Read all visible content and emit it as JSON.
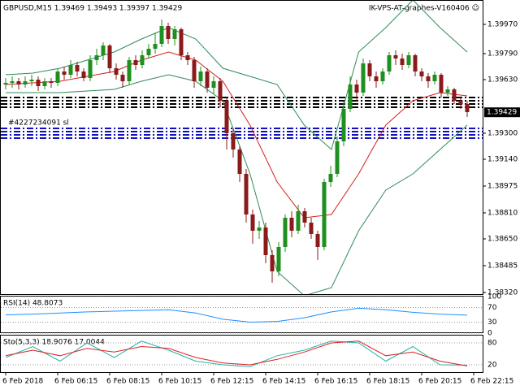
{
  "chart_data": [
    {
      "type": "candlestick",
      "title": "GBPUSD,M15  1.39469 1.39493 1.39397 1.39429",
      "subtitle": "IK-VPS-AT-graphes-V160406 ☺",
      "order_label": "#4227234091 sl",
      "categories": [
        "6 Feb 2018",
        null,
        null,
        null,
        null,
        null,
        null,
        null,
        "6 Feb 06:15",
        null,
        null,
        null,
        null,
        null,
        null,
        null,
        "6 Feb 08:15",
        null,
        null,
        null,
        null,
        null,
        null,
        null,
        "6 Feb 10:15",
        null,
        null,
        null,
        null,
        null,
        null,
        null,
        "6 Feb 12:15",
        null,
        null,
        null,
        null,
        null,
        null,
        null,
        "6 Feb 14:15",
        null,
        null,
        null,
        null,
        null,
        null,
        null,
        "6 Feb 16:15",
        null,
        null,
        null,
        null,
        null,
        null,
        null,
        "6 Feb 18:15",
        null,
        null,
        null,
        null,
        null,
        null,
        null,
        "6 Feb 20:15",
        null,
        null,
        null,
        null,
        null,
        null,
        null,
        "6 Feb 22:15"
      ],
      "open": [
        1.396,
        1.3961,
        1.3962,
        1.396,
        1.3962,
        1.3963,
        1.3959,
        1.3962,
        1.3961,
        1.3968,
        1.3966,
        1.3972,
        1.3968,
        1.3964,
        1.3975,
        1.3978,
        1.3984,
        1.397,
        1.3966,
        1.3962,
        1.3975,
        1.3972,
        1.3978,
        1.3982,
        1.3985,
        1.3996,
        1.3988,
        1.3994,
        1.3978,
        1.3975,
        1.3962,
        1.3968,
        1.3958,
        1.3962,
        1.395,
        1.393,
        1.392,
        1.3905,
        1.388,
        1.387,
        1.3872,
        1.3855,
        1.3845,
        1.386,
        1.3878,
        1.387,
        1.3882,
        1.3875,
        1.3868,
        1.386,
        1.39,
        1.3905,
        1.3925,
        1.3945,
        1.396,
        1.3955,
        1.3973,
        1.3965,
        1.3962,
        1.3968,
        1.3978,
        1.3976,
        1.3972,
        1.3978,
        1.3968,
        1.3965,
        1.3962,
        1.3966,
        1.3955,
        1.3957,
        1.395,
        1.3948,
        null
      ],
      "high": [
        1.3964,
        1.3965,
        1.3964,
        1.3965,
        1.3966,
        1.3965,
        1.3964,
        1.3964,
        1.397,
        1.3971,
        1.3975,
        1.3974,
        1.397,
        1.3978,
        1.3982,
        1.3986,
        1.3985,
        1.3973,
        1.3968,
        1.3977,
        1.3978,
        1.3981,
        1.3985,
        1.3992,
        1.4,
        1.3998,
        1.3996,
        1.3995,
        1.398,
        1.3977,
        1.3971,
        1.397,
        1.3965,
        1.3964,
        1.3952,
        1.3933,
        1.3922,
        1.3908,
        1.3883,
        1.3876,
        1.3875,
        1.3858,
        1.3863,
        1.388,
        1.3882,
        1.3886,
        1.3884,
        1.3878,
        1.387,
        1.3902,
        1.391,
        1.3928,
        1.395,
        1.3965,
        1.3963,
        1.3976,
        1.3975,
        1.3968,
        1.397,
        1.398,
        1.3981,
        1.3979,
        1.398,
        1.3979,
        1.397,
        1.3967,
        1.3968,
        1.3967,
        1.3959,
        1.3958,
        1.3952,
        1.395,
        null
      ],
      "low": [
        1.3957,
        1.3958,
        1.3957,
        1.3958,
        1.3959,
        1.3956,
        1.3957,
        1.3958,
        1.3959,
        1.3963,
        1.3964,
        1.3965,
        1.3962,
        1.3962,
        1.3972,
        1.3975,
        1.3967,
        1.3963,
        1.3958,
        1.396,
        1.3969,
        1.397,
        1.3976,
        1.3979,
        1.3983,
        1.3985,
        1.3984,
        1.3975,
        1.3972,
        1.3958,
        1.3959,
        1.3955,
        1.3954,
        1.3946,
        1.392,
        1.3915,
        1.39,
        1.3875,
        1.3862,
        1.3865,
        1.385,
        1.3838,
        1.3842,
        1.3857,
        1.3866,
        1.3868,
        1.3872,
        1.3865,
        1.3852,
        1.3858,
        1.3897,
        1.3903,
        1.3922,
        1.3943,
        1.395,
        1.3953,
        1.3962,
        1.3958,
        1.396,
        1.3966,
        1.3972,
        1.3969,
        1.397,
        1.3965,
        1.3962,
        1.3958,
        1.396,
        1.3952,
        1.3953,
        1.3948,
        1.3945,
        1.394,
        null
      ],
      "close": [
        1.3961,
        1.3962,
        1.396,
        1.3962,
        1.3963,
        1.3959,
        1.3962,
        1.3961,
        1.3968,
        1.3966,
        1.3972,
        1.3968,
        1.3964,
        1.3975,
        1.3978,
        1.3984,
        1.397,
        1.3966,
        1.3962,
        1.3975,
        1.3972,
        1.3978,
        1.3982,
        1.3985,
        1.3996,
        1.3988,
        1.3994,
        1.3978,
        1.3975,
        1.3962,
        1.3968,
        1.3958,
        1.3962,
        1.395,
        1.393,
        1.392,
        1.3905,
        1.388,
        1.387,
        1.3872,
        1.3855,
        1.3845,
        1.386,
        1.3878,
        1.387,
        1.3882,
        1.3875,
        1.3868,
        1.386,
        1.39,
        1.3905,
        1.3925,
        1.3945,
        1.396,
        1.3955,
        1.3973,
        1.3965,
        1.3962,
        1.3968,
        1.3978,
        1.3976,
        1.3972,
        1.3978,
        1.3968,
        1.3965,
        1.3962,
        1.3966,
        1.3955,
        1.3957,
        1.395,
        1.3948,
        1.3943,
        null
      ],
      "up_color": "#1f8f1f",
      "down_color": "#8b1a1a",
      "overlays": [
        {
          "color": "#d42020",
          "values": [
            1.396,
            1.3961,
            1.3962,
            1.3965,
            1.3968,
            1.3975,
            1.398,
            1.3975,
            1.3962,
            1.3935,
            1.39,
            1.3878,
            1.388,
            1.3905,
            1.3935,
            1.395,
            1.3955,
            1.3953
          ]
        },
        {
          "color": "#2e8b57",
          "values": [
            1.3966,
            1.3967,
            1.397,
            1.3975,
            1.398,
            1.3988,
            1.3995,
            1.3988,
            1.397,
            1.3965,
            1.396,
            1.3935,
            1.392,
            1.398,
            1.3995,
            1.4012,
            1.3995,
            1.398
          ]
        },
        {
          "color": "#2e8b57",
          "values": [
            1.3955,
            1.3955,
            1.3955,
            1.3956,
            1.3957,
            1.3962,
            1.3966,
            1.3962,
            1.395,
            1.3905,
            1.3845,
            1.383,
            1.3835,
            1.387,
            1.3895,
            1.3905,
            1.392,
            1.3935
          ]
        }
      ],
      "levels": [
        {
          "value": 1.3952,
          "color": "#000000"
        },
        {
          "value": 1.395,
          "color": "#000000"
        },
        {
          "value": 1.3948,
          "color": "#000000"
        },
        {
          "value": 1.3946,
          "color": "#000000"
        },
        {
          "value": 1.3933,
          "color": "#1010c0"
        },
        {
          "value": 1.3931,
          "color": "#1010c0"
        },
        {
          "value": 1.3929,
          "color": "#1010c0"
        },
        {
          "value": 1.3927,
          "color": "#1010c0"
        }
      ],
      "last_price": {
        "value": 1.39429,
        "label": "1.39429"
      },
      "ylim": [
        1.3831,
        1.4012
      ],
      "yticks": [
        {
          "value": 1.3997,
          "label": "1.39970"
        },
        {
          "value": 1.3979,
          "label": "1.39790"
        },
        {
          "value": 1.3963,
          "label": "1.39630"
        },
        {
          "value": 1.393,
          "label": "1.39300"
        },
        {
          "value": 1.3914,
          "label": "1.39140"
        },
        {
          "value": 1.38975,
          "label": "1.38975"
        },
        {
          "value": 1.3881,
          "label": "1.38810"
        },
        {
          "value": 1.3865,
          "label": "1.38650"
        },
        {
          "value": 1.38485,
          "label": "1.38485"
        },
        {
          "value": 1.3832,
          "label": "1.38320"
        }
      ]
    },
    {
      "type": "line",
      "title": "RSI(14) 48.8073",
      "series": [
        {
          "color": "#1e90ff",
          "values": [
            50,
            52,
            55,
            58,
            60,
            62,
            64,
            55,
            38,
            30,
            32,
            42,
            58,
            68,
            64,
            57,
            52,
            49
          ]
        }
      ],
      "ylim": [
        0,
        100
      ],
      "yticks": [
        100,
        70,
        30,
        0
      ]
    },
    {
      "type": "line",
      "title": "Sto(5,3,3) 18.9076 17.0044",
      "series": [
        {
          "color": "#20b2aa",
          "values": [
            40,
            70,
            30,
            80,
            40,
            85,
            60,
            30,
            20,
            15,
            45,
            60,
            85,
            80,
            30,
            70,
            20,
            19
          ]
        },
        {
          "color": "#e02020",
          "values": [
            45,
            60,
            45,
            65,
            55,
            70,
            65,
            40,
            25,
            20,
            35,
            55,
            80,
            85,
            45,
            55,
            30,
            17
          ]
        }
      ],
      "ylim": [
        0,
        100
      ],
      "yticks": [
        80,
        20
      ]
    }
  ]
}
